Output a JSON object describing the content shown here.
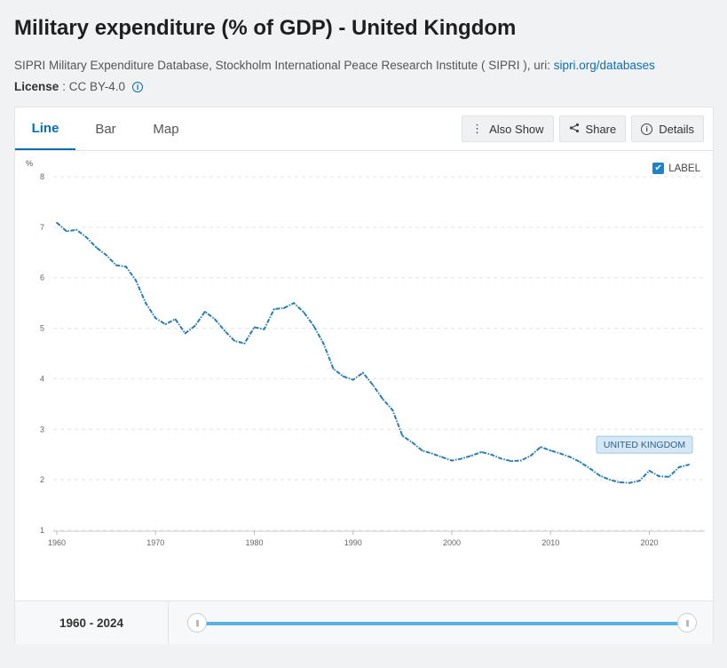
{
  "page": {
    "title": "Military expenditure (% of GDP) - United Kingdom",
    "source_text": "SIPRI Military Expenditure Database, Stockholm International Peace Research Institute ( SIPRI ), uri: ",
    "source_link": "sipri.org/databases",
    "license_label": "License",
    "license_value": ": CC BY-4.0",
    "info_icon": "i"
  },
  "tabs": [
    "Line",
    "Bar",
    "Map"
  ],
  "actions": {
    "also_show": "Also Show",
    "share": "Share",
    "details": "Details"
  },
  "label_toggle": "LABEL",
  "footer": {
    "range_label": "1960 - 2024",
    "handle_glyph": "|||"
  },
  "colors": {
    "accent": "#0a6eb4",
    "line": "#2a7db3",
    "slider": "#5ab1e4"
  },
  "chart_data": {
    "type": "line",
    "title": "Military expenditure (% of GDP) - United Kingdom",
    "ylabel": "%",
    "xlabel": "",
    "ylim": [
      1,
      8
    ],
    "xlim": [
      1960,
      2024
    ],
    "yticks": [
      1,
      2,
      3,
      4,
      5,
      6,
      7,
      8
    ],
    "xticks": [
      1960,
      1970,
      1980,
      1990,
      2000,
      2010,
      2020
    ],
    "grid": true,
    "series": [
      {
        "name": "UNITED KINGDOM",
        "x": [
          1960,
          1961,
          1962,
          1963,
          1964,
          1965,
          1966,
          1967,
          1968,
          1969,
          1970,
          1971,
          1972,
          1973,
          1974,
          1975,
          1976,
          1977,
          1978,
          1979,
          1980,
          1981,
          1982,
          1983,
          1984,
          1985,
          1986,
          1987,
          1988,
          1989,
          1990,
          1991,
          1992,
          1993,
          1994,
          1995,
          1996,
          1997,
          1998,
          1999,
          2000,
          2001,
          2002,
          2003,
          2004,
          2005,
          2006,
          2007,
          2008,
          2009,
          2010,
          2011,
          2012,
          2013,
          2014,
          2015,
          2016,
          2017,
          2018,
          2019,
          2020,
          2021,
          2022,
          2023,
          2024
        ],
        "values": [
          7.09,
          6.92,
          6.95,
          6.8,
          6.6,
          6.45,
          6.25,
          6.22,
          5.95,
          5.5,
          5.2,
          5.08,
          5.18,
          4.9,
          5.05,
          5.33,
          5.18,
          4.95,
          4.75,
          4.7,
          5.02,
          4.98,
          5.38,
          5.4,
          5.5,
          5.32,
          5.05,
          4.7,
          4.2,
          4.05,
          3.98,
          4.12,
          3.88,
          3.6,
          3.38,
          2.87,
          2.74,
          2.58,
          2.52,
          2.45,
          2.38,
          2.42,
          2.48,
          2.55,
          2.5,
          2.42,
          2.37,
          2.38,
          2.48,
          2.65,
          2.58,
          2.52,
          2.45,
          2.35,
          2.22,
          2.08,
          2.0,
          1.95,
          1.94,
          1.98,
          2.18,
          2.07,
          2.06,
          2.25,
          2.3
        ]
      }
    ],
    "series_label": "UNITED KINGDOM"
  }
}
